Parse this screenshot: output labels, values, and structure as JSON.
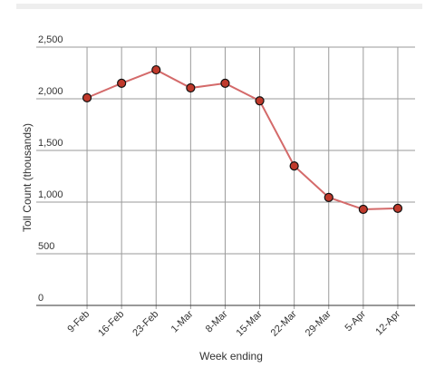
{
  "chart_data": {
    "type": "line",
    "x_label": "Week ending",
    "y_label": "Toll Count (thousands)",
    "categories": [
      "9-Feb",
      "16-Feb",
      "23-Feb",
      "1-Mar",
      "8-Mar",
      "15-Mar",
      "22-Mar",
      "29-Mar",
      "5-Apr",
      "12-Apr"
    ],
    "values": [
      2010,
      2150,
      2280,
      2105,
      2150,
      1980,
      1350,
      1045,
      930,
      940
    ],
    "color": "#d46a6a",
    "marker_color": "#c0392b",
    "ylim": [
      0,
      2500
    ],
    "yticks": [
      0,
      500,
      {
        "value": 1000,
        "label": "1,000"
      },
      {
        "value": 1500,
        "label": "1,500"
      },
      {
        "value": 2000,
        "label": "2,000"
      },
      {
        "value": 2500,
        "label": "2,500"
      }
    ],
    "grid": true
  }
}
